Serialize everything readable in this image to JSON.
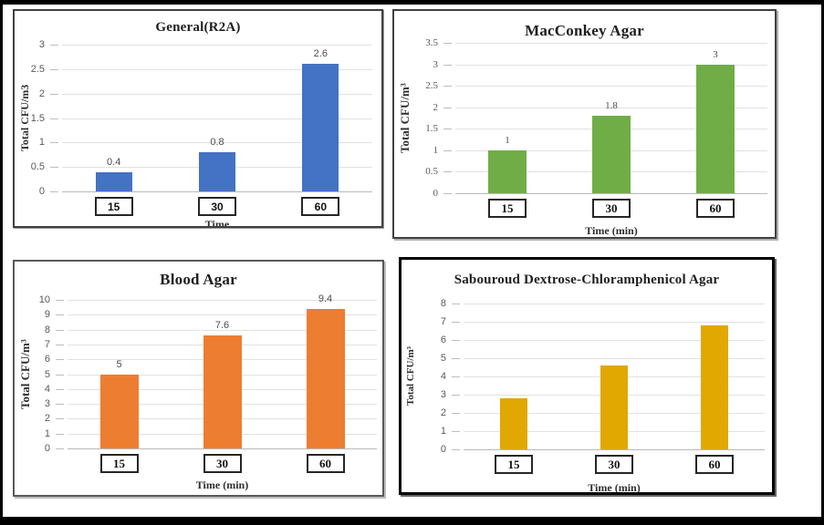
{
  "page": {
    "background_color": "#ffffff",
    "frame_border_color": "#000000",
    "description_layout": "2x2 grid of bar charts"
  },
  "chart_data": [
    {
      "type": "bar",
      "title": "General(R2A)",
      "ylabel": "Total CFU/m3",
      "xlabel": "Time",
      "categories": [
        "15",
        "30",
        "60"
      ],
      "values": [
        0.4,
        0.8,
        2.6
      ],
      "data_labels": [
        "0.4",
        "0.8",
        "2.6"
      ],
      "show_data_labels": true,
      "ylim": [
        0,
        3
      ],
      "ystep": 0.5,
      "ytick_labels": [
        "0",
        "0.5",
        "1",
        "1.5",
        "2",
        "2.5",
        "3"
      ],
      "bar_color": "#4472C4",
      "grid": true,
      "legend": false
    },
    {
      "type": "bar",
      "title": "MacConkey Agar",
      "ylabel": "Total CFU/m³",
      "xlabel": "Time (min)",
      "categories": [
        "15",
        "30",
        "60"
      ],
      "values": [
        1,
        1.8,
        3
      ],
      "data_labels": [
        "1",
        "1.8",
        "3"
      ],
      "show_data_labels": true,
      "ylim": [
        0,
        3.5
      ],
      "ystep": 0.5,
      "ytick_labels": [
        "0",
        "0.5",
        "1",
        "1.5",
        "2",
        "2.5",
        "3",
        "3.5"
      ],
      "bar_color": "#70AD47",
      "grid": true,
      "legend": false
    },
    {
      "type": "bar",
      "title": "Blood Agar",
      "ylabel": "Total CFU/m³",
      "xlabel": "Time (min)",
      "categories": [
        "15",
        "30",
        "60"
      ],
      "values": [
        5,
        7.6,
        9.4
      ],
      "data_labels": [
        "5",
        "7.6",
        "9.4"
      ],
      "show_data_labels": true,
      "ylim": [
        0,
        10
      ],
      "ystep": 1,
      "ytick_labels": [
        "0",
        "1",
        "2",
        "3",
        "4",
        "5",
        "6",
        "7",
        "8",
        "9",
        "10"
      ],
      "bar_color": "#ED7D31",
      "grid": true,
      "legend": false
    },
    {
      "type": "bar",
      "title": "Sabouroud Dextrose-Chloramphenicol Agar",
      "ylabel": "Total CFU/m³",
      "xlabel": "Time (min)",
      "categories": [
        "15",
        "30",
        "60"
      ],
      "values": [
        2.8,
        4.6,
        6.8
      ],
      "data_labels": [],
      "show_data_labels": false,
      "ylim": [
        0,
        8
      ],
      "ystep": 1,
      "ytick_labels": [
        "0",
        "1",
        "2",
        "3",
        "4",
        "5",
        "6",
        "7",
        "8"
      ],
      "bar_color": "#E0A800",
      "grid": true,
      "legend": false
    }
  ]
}
